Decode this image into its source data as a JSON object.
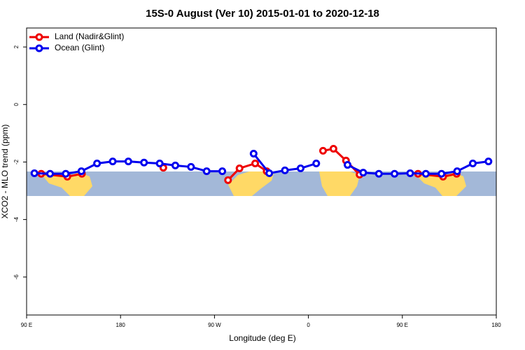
{
  "chart_data": {
    "type": "line",
    "title": "15S-0 August (Ver 10)   2015-01-01 to 2020-12-18",
    "xlabel": "Longitude (deg E)",
    "ylabel": "XCO2 - MLO trend (ppm)",
    "xlim": [
      90,
      540
    ],
    "ylim": [
      -7.32,
      2.66
    ],
    "xticks": [
      {
        "value": 90,
        "label": "90 E"
      },
      {
        "value": 180,
        "label": "180"
      },
      {
        "value": 270,
        "label": "90 W"
      },
      {
        "value": 360,
        "label": "0"
      },
      {
        "value": 450,
        "label": "90 E"
      },
      {
        "value": 540,
        "label": "180"
      }
    ],
    "yticks": [
      2,
      0,
      -2,
      -4,
      -6
    ],
    "legend": "top-left",
    "series": [
      {
        "name": "Land (Nadir&Glint)",
        "color": "#ee0000",
        "x": [
          104,
          129,
          143,
          null,
          221,
          null,
          283,
          294,
          309,
          320,
          null,
          374,
          384,
          396,
          409,
          null,
          465,
          489,
          502
        ],
        "values": [
          -2.41,
          -2.51,
          -2.41,
          null,
          -2.2,
          null,
          -2.63,
          -2.22,
          -2.05,
          -2.32,
          null,
          -1.61,
          -1.54,
          -1.95,
          -2.44,
          null,
          -2.41,
          -2.51,
          -2.41
        ]
      },
      {
        "name": "Ocean (Glint)",
        "color": "#0000ee",
        "x": [
          97.5,
          112.5,
          127.5,
          142.5,
          157.5,
          172.5,
          187.5,
          202.5,
          217.5,
          232.5,
          247.5,
          262.5,
          277.5,
          292.5,
          307.5,
          322.5,
          337.5,
          352.5,
          367.5,
          382.5,
          397.5,
          412.5,
          427.5,
          442.5,
          457.5,
          472.5,
          487.5,
          502.5,
          517.5,
          532.5
        ],
        "values": [
          -2.39,
          -2.41,
          -2.41,
          -2.32,
          -2.05,
          -1.98,
          -1.98,
          -2.02,
          -2.05,
          -2.12,
          -2.17,
          -2.32,
          -2.32,
          null,
          -1.71,
          -2.39,
          -2.29,
          -2.22,
          -2.05,
          null,
          -2.1,
          -2.37,
          -2.41,
          -2.41,
          -2.39,
          -2.41,
          -2.41,
          -2.32,
          -2.05,
          -1.98
        ]
      }
    ]
  }
}
